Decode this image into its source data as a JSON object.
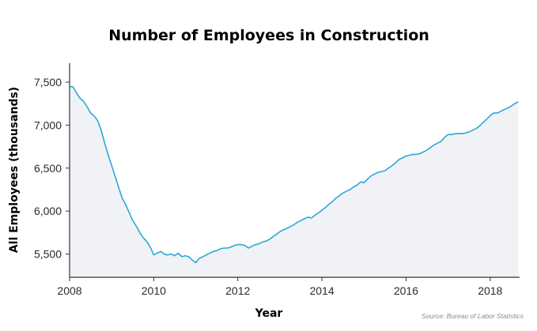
{
  "colors": {
    "accent": "#2aa9d8",
    "area_fill": "#f1f2f6",
    "axis": "#333333"
  },
  "chart_data": {
    "type": "area",
    "title": "Number of Employees in Construction",
    "xlabel": "Year",
    "ylabel": "All Employees (thousands)",
    "source": "Source: Bureau of Labor Statistics",
    "xlim": [
      2008,
      2018.7
    ],
    "ylim": [
      5230,
      7720
    ],
    "x_ticks": [
      2008,
      2010,
      2012,
      2014,
      2016,
      2018
    ],
    "y_ticks": [
      5500,
      6000,
      6500,
      7000,
      7500
    ],
    "x_tick_labels": [
      "2008",
      "2010",
      "2012",
      "2014",
      "2016",
      "2018"
    ],
    "y_tick_labels": [
      "5,500",
      "6,000",
      "6,500",
      "7,000",
      "7,500"
    ],
    "grid": false,
    "legend": "none",
    "series": [
      {
        "x": [
          2008.0,
          2008.08,
          2008.17,
          2008.25,
          2008.33,
          2008.42,
          2008.5,
          2008.58,
          2008.67,
          2008.75,
          2008.83,
          2008.92,
          2009.0,
          2009.08,
          2009.17,
          2009.25,
          2009.33,
          2009.42,
          2009.5,
          2009.58,
          2009.67,
          2009.75,
          2009.83,
          2009.92,
          2010.0,
          2010.08,
          2010.17,
          2010.25,
          2010.33,
          2010.42,
          2010.5,
          2010.58,
          2010.67,
          2010.75,
          2010.83,
          2010.92,
          2011.0,
          2011.08,
          2011.17,
          2011.25,
          2011.33,
          2011.42,
          2011.5,
          2011.58,
          2011.67,
          2011.75,
          2011.83,
          2011.92,
          2012.0,
          2012.08,
          2012.17,
          2012.25,
          2012.33,
          2012.42,
          2012.5,
          2012.58,
          2012.67,
          2012.75,
          2012.83,
          2012.92,
          2013.0,
          2013.08,
          2013.17,
          2013.25,
          2013.33,
          2013.42,
          2013.5,
          2013.58,
          2013.67,
          2013.75,
          2013.83,
          2013.92,
          2014.0,
          2014.08,
          2014.17,
          2014.25,
          2014.33,
          2014.42,
          2014.5,
          2014.58,
          2014.67,
          2014.75,
          2014.83,
          2014.92,
          2015.0,
          2015.08,
          2015.17,
          2015.25,
          2015.33,
          2015.42,
          2015.5,
          2015.58,
          2015.67,
          2015.75,
          2015.83,
          2015.92,
          2016.0,
          2016.08,
          2016.17,
          2016.25,
          2016.33,
          2016.42,
          2016.5,
          2016.58,
          2016.67,
          2016.75,
          2016.83,
          2016.92,
          2017.0,
          2017.08,
          2017.17,
          2017.25,
          2017.33,
          2017.42,
          2017.5,
          2017.58,
          2017.67,
          2017.75,
          2017.83,
          2017.92,
          2018.0,
          2018.08,
          2018.17,
          2018.25,
          2018.33,
          2018.42,
          2018.5,
          2018.58,
          2018.67
        ],
        "y": [
          7450,
          7445,
          7370,
          7310,
          7280,
          7210,
          7140,
          7110,
          7050,
          6940,
          6800,
          6650,
          6530,
          6410,
          6270,
          6150,
          6080,
          5980,
          5890,
          5830,
          5750,
          5690,
          5650,
          5580,
          5490,
          5510,
          5530,
          5500,
          5490,
          5500,
          5480,
          5510,
          5470,
          5480,
          5470,
          5430,
          5400,
          5450,
          5470,
          5490,
          5510,
          5530,
          5540,
          5560,
          5570,
          5570,
          5580,
          5600,
          5610,
          5610,
          5600,
          5570,
          5590,
          5610,
          5620,
          5640,
          5650,
          5670,
          5700,
          5730,
          5760,
          5780,
          5800,
          5820,
          5840,
          5870,
          5890,
          5910,
          5930,
          5920,
          5950,
          5980,
          6010,
          6040,
          6080,
          6110,
          6150,
          6180,
          6210,
          6230,
          6250,
          6280,
          6300,
          6340,
          6330,
          6370,
          6410,
          6430,
          6450,
          6460,
          6470,
          6500,
          6530,
          6560,
          6600,
          6620,
          6640,
          6650,
          6660,
          6660,
          6670,
          6690,
          6710,
          6740,
          6770,
          6790,
          6810,
          6860,
          6890,
          6890,
          6900,
          6900,
          6900,
          6910,
          6920,
          6940,
          6960,
          6990,
          7030,
          7070,
          7110,
          7140,
          7140,
          7160,
          7180,
          7200,
          7220,
          7250,
          7270
        ]
      }
    ]
  }
}
